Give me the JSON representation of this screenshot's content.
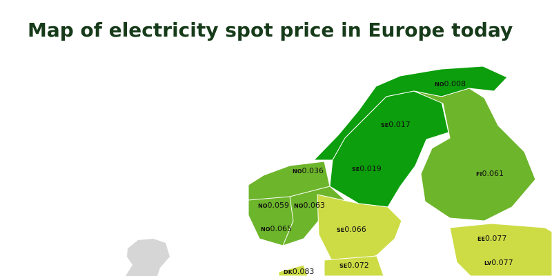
{
  "title": "Map of electricity spot price in Europe today",
  "regions": [
    {
      "code": "NO",
      "price": 0.008
    },
    {
      "code": "SE",
      "price": 0.017
    },
    {
      "code": "SE",
      "price": 0.019
    },
    {
      "code": "NO",
      "price": 0.036
    },
    {
      "code": "FI",
      "price": 0.061
    },
    {
      "code": "NO",
      "price": 0.059
    },
    {
      "code": "NO",
      "price": 0.063
    },
    {
      "code": "NO",
      "price": 0.065
    },
    {
      "code": "SE",
      "price": 0.066
    },
    {
      "code": "EE",
      "price": 0.077
    },
    {
      "code": "LV",
      "price": 0.077
    },
    {
      "code": "DK",
      "price": 0.083
    },
    {
      "code": "SE",
      "price": 0.072
    }
  ]
}
